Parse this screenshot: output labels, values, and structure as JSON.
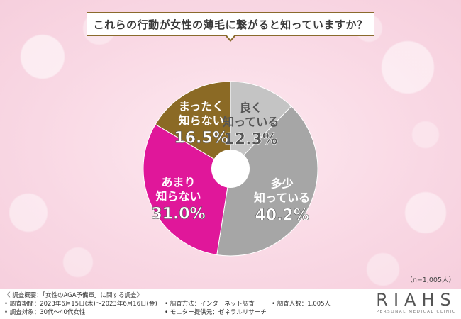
{
  "title": "これらの行動が女性の薄毛に繋がると知っていますか？",
  "chart_data": {
    "type": "pie",
    "donut": true,
    "slices": [
      {
        "label_lines": [
          "良く",
          "知っている"
        ],
        "value": 12.3,
        "value_text": "12.3%",
        "color": "#c4c4c4",
        "text_color": "#ffffff",
        "value_color": "#555555"
      },
      {
        "label_lines": [
          "多少",
          "知っている"
        ],
        "value": 40.2,
        "value_text": "40.2%",
        "color": "#a6a6a6",
        "text_color": "#ffffff",
        "value_color": "#ffffff"
      },
      {
        "label_lines": [
          "あまり",
          "知らない"
        ],
        "value": 31.0,
        "value_text": "31.0%",
        "color": "#e0179a",
        "text_color": "#ffffff",
        "value_color": "#ffffff"
      },
      {
        "label_lines": [
          "まったく",
          "知らない"
        ],
        "value": 16.5,
        "value_text": "16.5%",
        "color": "#8b6a25",
        "text_color": "#ffffff",
        "value_color": "#ffffff"
      }
    ],
    "start_angle_deg": 0,
    "direction": "clockwise"
  },
  "sample_note": "（n=1,005人）",
  "survey": {
    "heading": "《 調査概要：「女性のAGA予備軍」に関する調査》",
    "period": "• 調査期間：2023年6月15日(木)～2023年6月16日(金)",
    "target": "• 調査対象：30代～40代女性",
    "method": "• 調査方法：インターネット調査",
    "provider": "• モニター提供元：ゼネラルリサーチ",
    "count": "• 調査人数：1,005人"
  },
  "logo": {
    "name": "RIAHS",
    "tagline": "PERSONAL MEDICAL CLINIC"
  },
  "colors": {
    "accent_gold": "#8a6a2c",
    "background_pink": "#fbe3ec"
  }
}
